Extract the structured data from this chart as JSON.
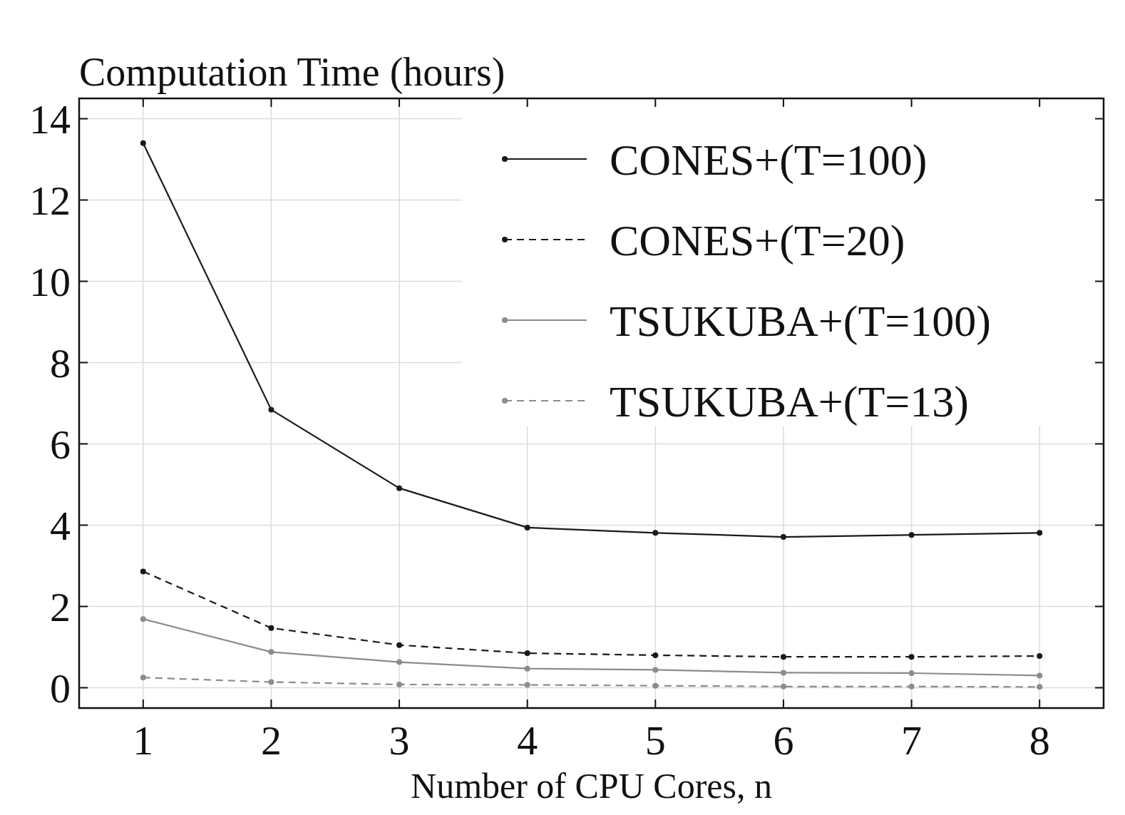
{
  "chart_data": {
    "type": "line",
    "ylabel": "Computation Time (hours)",
    "xlabel": "Number of CPU Cores, n",
    "x": [
      1,
      2,
      3,
      4,
      5,
      6,
      7,
      8
    ],
    "xlim": [
      0.5,
      8.5
    ],
    "xticks": [
      1,
      2,
      3,
      4,
      5,
      6,
      7,
      8
    ],
    "ylim": [
      -0.5,
      14.5
    ],
    "yticks": [
      0,
      2,
      4,
      6,
      8,
      10,
      12,
      14
    ],
    "grid": true,
    "legend": "top right",
    "marker": "circle",
    "series": [
      {
        "name": "CONES+(T=100)",
        "color": "#1a1a1a",
        "line_style": "solid",
        "values": [
          13.4,
          6.84,
          4.91,
          3.94,
          3.81,
          3.71,
          3.76,
          3.81
        ]
      },
      {
        "name": "CONES+(T=20)",
        "color": "#1a1a1a",
        "line_style": "dashed",
        "values": [
          2.86,
          1.47,
          1.05,
          0.85,
          0.8,
          0.76,
          0.76,
          0.78
        ]
      },
      {
        "name": "TSUKUBA+(T=100)",
        "color": "#8c8c8c",
        "line_style": "solid",
        "values": [
          1.69,
          0.88,
          0.63,
          0.47,
          0.44,
          0.37,
          0.36,
          0.3
        ]
      },
      {
        "name": "TSUKUBA+(T=13)",
        "color": "#8c8c8c",
        "line_style": "dashed",
        "values": [
          0.25,
          0.14,
          0.08,
          0.07,
          0.05,
          0.03,
          0.03,
          0.02
        ]
      }
    ]
  }
}
